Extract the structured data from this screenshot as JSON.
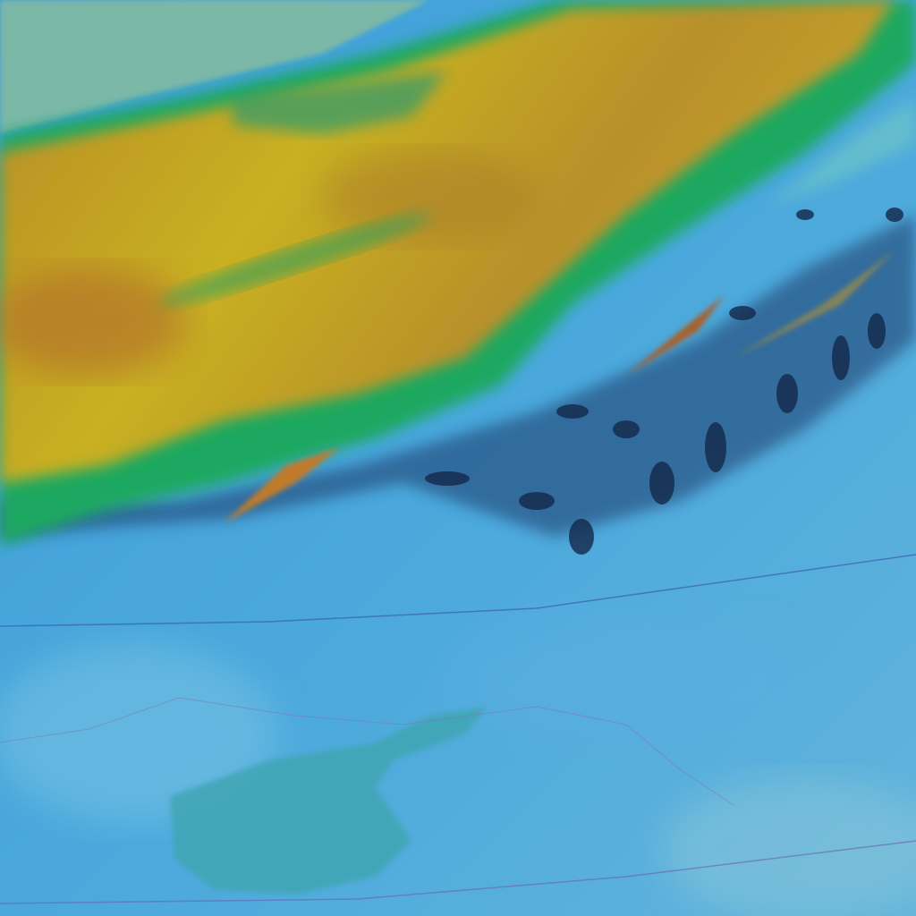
{
  "image": {
    "kind": "false-color satellite imagery",
    "colors": {
      "land": "#4aa8dc",
      "land_light": "#6cc0e0",
      "water": "#3fa6b4",
      "cloud_core": "#c8b424",
      "cloud_warm": "#b8782a",
      "cloud_edge": "#1ea860",
      "cloud_shadow": "#14284a",
      "corner": "#7cb8a8"
    }
  }
}
